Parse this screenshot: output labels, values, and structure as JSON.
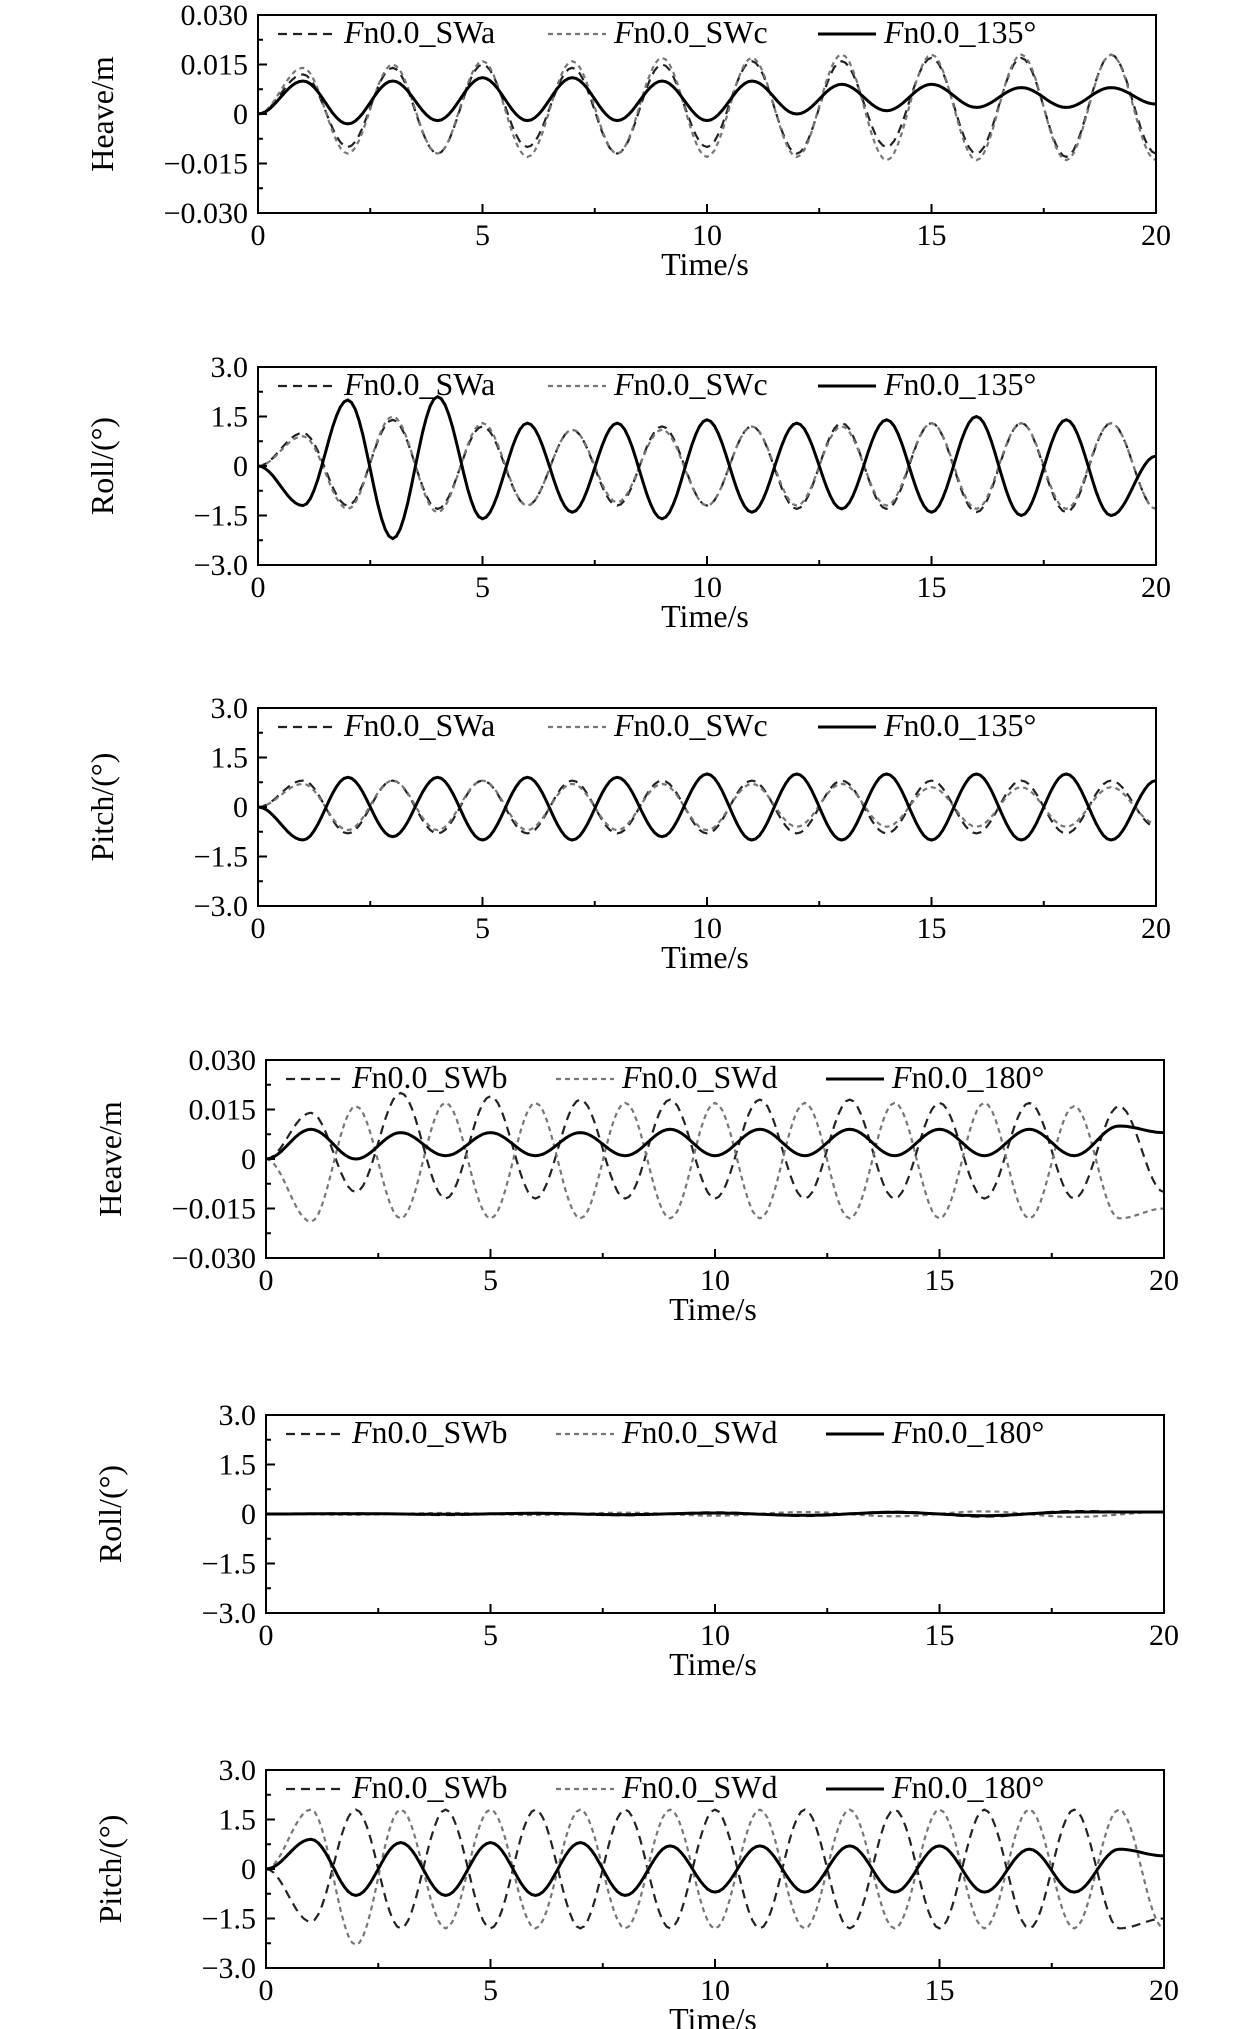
{
  "chart_data": [
    {
      "type": "line",
      "ylabel": "Heave/m",
      "xlabel": "Time/s",
      "xlim": [
        0,
        20
      ],
      "ylim": [
        -0.03,
        0.03
      ],
      "xticks": [
        "0",
        "5",
        "10",
        "15",
        "20"
      ],
      "yticks": [
        "0.030",
        "0.015",
        "0",
        "−0.015",
        "−0.030"
      ],
      "legend_placement": "top",
      "series": [
        {
          "name_prefix": "F",
          "name_suffix": "n0.0_SWa",
          "style": "dash",
          "color": "#222222",
          "x": [
            0,
            1,
            2,
            3,
            4,
            5,
            6,
            7,
            8,
            9,
            10,
            11,
            12,
            13,
            14,
            15,
            16,
            17,
            18,
            19,
            20
          ],
          "y": [
            0,
            0.012,
            -0.01,
            0.014,
            -0.012,
            0.015,
            -0.01,
            0.014,
            -0.012,
            0.015,
            -0.01,
            0.016,
            -0.012,
            0.016,
            -0.01,
            0.017,
            -0.012,
            0.017,
            -0.013,
            0.018,
            -0.012
          ]
        },
        {
          "name_prefix": "F",
          "name_suffix": "n0.0_SWc",
          "style": "dash-dot",
          "color": "#777777",
          "x": [
            0,
            1,
            2,
            3,
            4,
            5,
            6,
            7,
            8,
            9,
            10,
            11,
            12,
            13,
            14,
            15,
            16,
            17,
            18,
            19,
            20
          ],
          "y": [
            0,
            0.014,
            -0.012,
            0.015,
            -0.012,
            0.016,
            -0.013,
            0.016,
            -0.012,
            0.017,
            -0.013,
            0.017,
            -0.013,
            0.018,
            -0.014,
            0.018,
            -0.014,
            0.018,
            -0.014,
            0.018,
            -0.014
          ]
        },
        {
          "name_prefix": "F",
          "name_suffix": "n0.0_135°",
          "style": "solid",
          "color": "#000000",
          "x": [
            0,
            1,
            2,
            3,
            4,
            5,
            6,
            7,
            8,
            9,
            10,
            11,
            12,
            13,
            14,
            15,
            16,
            17,
            18,
            19,
            20
          ],
          "y": [
            0,
            0.01,
            -0.003,
            0.01,
            -0.002,
            0.011,
            -0.002,
            0.011,
            -0.002,
            0.01,
            -0.002,
            0.01,
            0,
            0.009,
            0.001,
            0.009,
            0.002,
            0.008,
            0.002,
            0.008,
            0.003
          ]
        }
      ]
    },
    {
      "type": "line",
      "ylabel": "Roll/(°)",
      "xlabel": "Time/s",
      "xlim": [
        0,
        20
      ],
      "ylim": [
        -3,
        3
      ],
      "xticks": [
        "0",
        "5",
        "10",
        "15",
        "20"
      ],
      "yticks": [
        "3.0",
        "1.5",
        "0",
        "−1.5",
        "−3.0"
      ],
      "legend_placement": "top",
      "series": [
        {
          "name_prefix": "F",
          "name_suffix": "n0.0_SWa",
          "style": "dash",
          "color": "#222222",
          "x": [
            0,
            1,
            2,
            3,
            4,
            5,
            6,
            7,
            8,
            9,
            10,
            11,
            12,
            13,
            14,
            15,
            16,
            17,
            18,
            19,
            20
          ],
          "y": [
            0,
            1.0,
            -1.2,
            1.4,
            -1.3,
            1.2,
            -1.2,
            1.1,
            -1.2,
            1.2,
            -1.2,
            1.2,
            -1.3,
            1.3,
            -1.3,
            1.3,
            -1.4,
            1.3,
            -1.4,
            1.3,
            -1.3
          ]
        },
        {
          "name_prefix": "F",
          "name_suffix": "n0.0_SWc",
          "style": "dash-dot",
          "color": "#777777",
          "x": [
            0,
            1,
            2,
            3,
            4,
            5,
            6,
            7,
            8,
            9,
            10,
            11,
            12,
            13,
            14,
            15,
            16,
            17,
            18,
            19,
            20
          ],
          "y": [
            0,
            0.9,
            -1.3,
            1.5,
            -1.4,
            1.3,
            -1.2,
            1.1,
            -1.1,
            1.1,
            -1.2,
            1.2,
            -1.2,
            1.2,
            -1.2,
            1.3,
            -1.3,
            1.3,
            -1.3,
            1.3,
            -1.3
          ]
        },
        {
          "name_prefix": "F",
          "name_suffix": "n0.0_135°",
          "style": "solid",
          "color": "#000000",
          "x": [
            0,
            1,
            2,
            3,
            4,
            5,
            6,
            7,
            8,
            9,
            10,
            11,
            12,
            13,
            14,
            15,
            16,
            17,
            18,
            19,
            20
          ],
          "y": [
            0,
            -1.2,
            2.0,
            -2.2,
            2.1,
            -1.6,
            1.3,
            -1.4,
            1.3,
            -1.6,
            1.4,
            -1.4,
            1.3,
            -1.3,
            1.4,
            -1.4,
            1.5,
            -1.5,
            1.4,
            -1.5,
            0.3
          ]
        }
      ]
    },
    {
      "type": "line",
      "ylabel": "Pitch/(°)",
      "xlabel": "Time/s",
      "xlim": [
        0,
        20
      ],
      "ylim": [
        -3,
        3
      ],
      "xticks": [
        "0",
        "5",
        "10",
        "15",
        "20"
      ],
      "yticks": [
        "3.0",
        "1.5",
        "0",
        "−1.5",
        "−3.0"
      ],
      "legend_placement": "top",
      "series": [
        {
          "name_prefix": "F",
          "name_suffix": "n0.0_SWa",
          "style": "dash",
          "color": "#222222",
          "x": [
            0,
            1,
            2,
            3,
            4,
            5,
            6,
            7,
            8,
            9,
            10,
            11,
            12,
            13,
            14,
            15,
            16,
            17,
            18,
            19,
            20
          ],
          "y": [
            0,
            0.8,
            -0.8,
            0.8,
            -0.8,
            0.8,
            -0.8,
            0.8,
            -0.8,
            0.8,
            -0.8,
            0.8,
            -0.8,
            0.8,
            -0.8,
            0.8,
            -0.8,
            0.8,
            -0.8,
            0.8,
            -0.6
          ]
        },
        {
          "name_prefix": "F",
          "name_suffix": "n0.0_SWc",
          "style": "dash-dot",
          "color": "#777777",
          "x": [
            0,
            1,
            2,
            3,
            4,
            5,
            6,
            7,
            8,
            9,
            10,
            11,
            12,
            13,
            14,
            15,
            16,
            17,
            18,
            19,
            20
          ],
          "y": [
            0,
            0.7,
            -0.7,
            0.8,
            -0.7,
            0.8,
            -0.7,
            0.7,
            -0.7,
            0.7,
            -0.7,
            0.7,
            -0.6,
            0.7,
            -0.6,
            0.6,
            -0.6,
            0.6,
            -0.6,
            0.6,
            -0.5
          ]
        },
        {
          "name_prefix": "F",
          "name_suffix": "n0.0_135°",
          "style": "solid",
          "color": "#000000",
          "x": [
            0,
            1,
            2,
            3,
            4,
            5,
            6,
            7,
            8,
            9,
            10,
            11,
            12,
            13,
            14,
            15,
            16,
            17,
            18,
            19,
            20
          ],
          "y": [
            0,
            -1.0,
            0.9,
            -0.9,
            0.9,
            -1.0,
            0.9,
            -1.0,
            0.9,
            -0.9,
            1.0,
            -1.0,
            1.0,
            -1.0,
            1.0,
            -1.0,
            1.0,
            -1.0,
            1.0,
            -1.0,
            0.8
          ]
        }
      ]
    },
    {
      "type": "line",
      "ylabel": "Heave/m",
      "xlabel": "Time/s",
      "xlim": [
        0,
        20
      ],
      "ylim": [
        -0.03,
        0.03
      ],
      "xticks": [
        "0",
        "5",
        "10",
        "15",
        "20"
      ],
      "yticks": [
        "0.030",
        "0.015",
        "0",
        "−0.015",
        "−0.030"
      ],
      "legend_placement": "top",
      "series": [
        {
          "name_prefix": "F",
          "name_suffix": "n0.0_SWb",
          "style": "dash",
          "color": "#222222",
          "x": [
            0,
            1,
            2,
            3,
            4,
            5,
            6,
            7,
            8,
            9,
            10,
            11,
            12,
            13,
            14,
            15,
            16,
            17,
            18,
            19,
            20
          ],
          "y": [
            0,
            0.014,
            -0.01,
            0.02,
            -0.012,
            0.019,
            -0.012,
            0.018,
            -0.012,
            0.018,
            -0.012,
            0.018,
            -0.012,
            0.018,
            -0.012,
            0.017,
            -0.012,
            0.017,
            -0.012,
            0.016,
            -0.01
          ]
        },
        {
          "name_prefix": "F",
          "name_suffix": "n0.0_SWd",
          "style": "dash-dot",
          "color": "#777777",
          "x": [
            0,
            1,
            2,
            3,
            4,
            5,
            6,
            7,
            8,
            9,
            10,
            11,
            12,
            13,
            14,
            15,
            16,
            17,
            18,
            19,
            20
          ],
          "y": [
            0,
            -0.019,
            0.016,
            -0.018,
            0.017,
            -0.018,
            0.017,
            -0.018,
            0.017,
            -0.018,
            0.017,
            -0.018,
            0.017,
            -0.018,
            0.017,
            -0.018,
            0.017,
            -0.018,
            0.016,
            -0.018,
            -0.015
          ]
        },
        {
          "name_prefix": "F",
          "name_suffix": "n0.0_180°",
          "style": "solid",
          "color": "#000000",
          "x": [
            0,
            1,
            2,
            3,
            4,
            5,
            6,
            7,
            8,
            9,
            10,
            11,
            12,
            13,
            14,
            15,
            16,
            17,
            18,
            19,
            20
          ],
          "y": [
            0,
            0.009,
            0,
            0.008,
            0.001,
            0.008,
            0.001,
            0.008,
            0.001,
            0.009,
            0.001,
            0.009,
            0.001,
            0.009,
            0.001,
            0.009,
            0.001,
            0.009,
            0.001,
            0.01,
            0.008
          ]
        }
      ]
    },
    {
      "type": "line",
      "ylabel": "Roll/(°)",
      "xlabel": "Time/s",
      "xlim": [
        0,
        20
      ],
      "ylim": [
        -3,
        3
      ],
      "xticks": [
        "0",
        "5",
        "10",
        "15",
        "20"
      ],
      "yticks": [
        "3.0",
        "1.5",
        "0",
        "−1.5",
        "−3.0"
      ],
      "legend_placement": "top",
      "series": [
        {
          "name_prefix": "F",
          "name_suffix": "n0.0_SWb",
          "style": "dash",
          "color": "#222222",
          "x": [
            0,
            2,
            4,
            6,
            8,
            10,
            12,
            14,
            16,
            18,
            20
          ],
          "y": [
            0,
            0.02,
            -0.03,
            0.03,
            -0.04,
            0.05,
            -0.06,
            0.07,
            -0.08,
            0.09,
            0.05
          ]
        },
        {
          "name_prefix": "F",
          "name_suffix": "n0.0_SWd",
          "style": "dash-dot",
          "color": "#777777",
          "x": [
            0,
            2,
            4,
            6,
            8,
            10,
            12,
            14,
            16,
            18,
            20
          ],
          "y": [
            0,
            -0.02,
            0.03,
            -0.03,
            0.04,
            -0.05,
            0.06,
            -0.07,
            0.08,
            -0.09,
            0.06
          ]
        },
        {
          "name_prefix": "F",
          "name_suffix": "n0.0_180°",
          "style": "solid",
          "color": "#000000",
          "x": [
            0,
            2,
            4,
            6,
            8,
            10,
            12,
            14,
            16,
            18,
            20
          ],
          "y": [
            0,
            0.01,
            -0.01,
            0.02,
            -0.02,
            0.03,
            -0.04,
            0.05,
            -0.05,
            0.06,
            0.06
          ]
        }
      ]
    },
    {
      "type": "line",
      "ylabel": "Pitch/(°)",
      "xlabel": "Time/s",
      "xlim": [
        0,
        20
      ],
      "ylim": [
        -3,
        3
      ],
      "xticks": [
        "0",
        "5",
        "10",
        "15",
        "20"
      ],
      "yticks": [
        "3.0",
        "1.5",
        "0",
        "−1.5",
        "−3.0"
      ],
      "legend_placement": "top",
      "series": [
        {
          "name_prefix": "F",
          "name_suffix": "n0.0_SWb",
          "style": "dash",
          "color": "#222222",
          "x": [
            0,
            1,
            2,
            3,
            4,
            5,
            6,
            7,
            8,
            9,
            10,
            11,
            12,
            13,
            14,
            15,
            16,
            17,
            18,
            19,
            20
          ],
          "y": [
            0,
            -1.6,
            1.8,
            -1.8,
            1.8,
            -1.8,
            1.8,
            -1.8,
            1.8,
            -1.8,
            1.8,
            -1.8,
            1.8,
            -1.8,
            1.8,
            -1.8,
            1.8,
            -1.8,
            1.8,
            -1.8,
            -1.5
          ]
        },
        {
          "name_prefix": "F",
          "name_suffix": "n0.0_SWd",
          "style": "dash-dot",
          "color": "#777777",
          "x": [
            0,
            1,
            2,
            3,
            4,
            5,
            6,
            7,
            8,
            9,
            10,
            11,
            12,
            13,
            14,
            15,
            16,
            17,
            18,
            19,
            20
          ],
          "y": [
            0,
            1.8,
            -2.3,
            1.8,
            -1.8,
            1.8,
            -1.8,
            1.8,
            -1.8,
            1.8,
            -1.8,
            1.8,
            -1.8,
            1.8,
            -1.8,
            1.8,
            -1.8,
            1.8,
            -1.8,
            1.8,
            -1.8
          ]
        },
        {
          "name_prefix": "F",
          "name_suffix": "n0.0_180°",
          "style": "solid",
          "color": "#000000",
          "x": [
            0,
            1,
            2,
            3,
            4,
            5,
            6,
            7,
            8,
            9,
            10,
            11,
            12,
            13,
            14,
            15,
            16,
            17,
            18,
            19,
            20
          ],
          "y": [
            0,
            0.9,
            -0.8,
            0.8,
            -0.8,
            0.8,
            -0.8,
            0.8,
            -0.8,
            0.7,
            -0.7,
            0.7,
            -0.7,
            0.7,
            -0.7,
            0.7,
            -0.7,
            0.6,
            -0.7,
            0.6,
            0.4
          ]
        }
      ]
    }
  ]
}
